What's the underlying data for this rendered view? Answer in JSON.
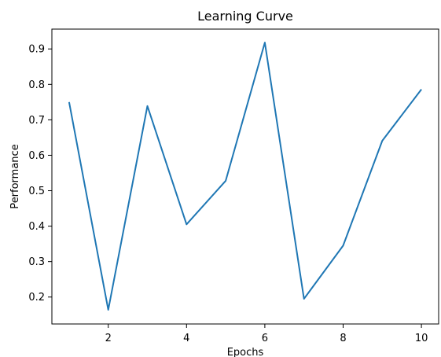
{
  "chart_data": {
    "type": "line",
    "title": "Learning Curve",
    "xlabel": "Epochs",
    "ylabel": "Performance",
    "grid": false,
    "legend": "none",
    "xlim": [
      0.56,
      10.44
    ],
    "ylim": [
      0.124,
      0.956
    ],
    "xticks": [
      2,
      4,
      6,
      8,
      10
    ],
    "xtick_labels": [
      "2",
      "4",
      "6",
      "8",
      "10"
    ],
    "yticks": [
      0.2,
      0.3,
      0.4,
      0.5,
      0.6,
      0.7,
      0.8,
      0.9
    ],
    "ytick_labels": [
      "0.2",
      "0.3",
      "0.4",
      "0.5",
      "0.6",
      "0.7",
      "0.8",
      "0.9"
    ],
    "series": [
      {
        "color": "#1f77b4",
        "x": [
          1,
          2,
          3,
          4,
          5,
          6,
          7,
          8,
          9,
          10
        ],
        "y": [
          0.75,
          0.164,
          0.739,
          0.405,
          0.528,
          0.918,
          0.195,
          0.345,
          0.641,
          0.786
        ]
      }
    ]
  }
}
